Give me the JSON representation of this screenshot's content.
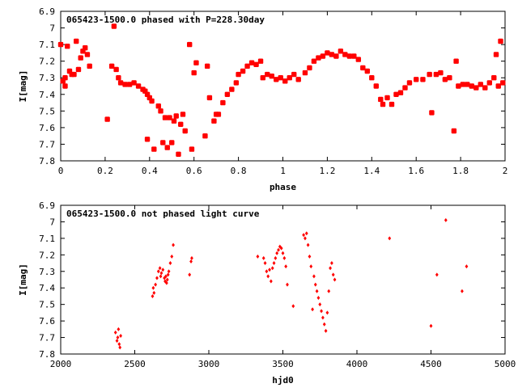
{
  "chart_data": [
    {
      "type": "scatter",
      "title": "065423-1500.0 phased with P=228.30day",
      "xlabel": "phase",
      "ylabel": "I[mag]",
      "xlim": [
        0,
        2
      ],
      "ylim": [
        6.9,
        7.8
      ],
      "y_inverted": true,
      "grid": false,
      "marker_color": "#ff0000",
      "xticks": [
        "0",
        "0.2",
        "0.4",
        "0.6",
        "0.8",
        "1",
        "1.2",
        "1.4",
        "1.6",
        "1.8",
        "2"
      ],
      "yticks": [
        "6.9",
        "7",
        "7.1",
        "7.2",
        "7.3",
        "7.4",
        "7.5",
        "7.6",
        "7.7",
        "7.8"
      ],
      "points": [
        [
          0.0,
          7.1
        ],
        [
          0.01,
          7.32
        ],
        [
          0.02,
          7.3
        ],
        [
          0.02,
          7.35
        ],
        [
          0.03,
          7.11
        ],
        [
          0.04,
          7.26
        ],
        [
          0.05,
          7.28
        ],
        [
          0.06,
          7.28
        ],
        [
          0.07,
          7.08
        ],
        [
          0.08,
          7.25
        ],
        [
          0.09,
          7.18
        ],
        [
          0.1,
          7.14
        ],
        [
          0.11,
          7.12
        ],
        [
          0.12,
          7.16
        ],
        [
          0.13,
          7.23
        ],
        [
          0.21,
          7.55
        ],
        [
          0.23,
          7.23
        ],
        [
          0.24,
          6.99
        ],
        [
          0.25,
          7.25
        ],
        [
          0.26,
          7.3
        ],
        [
          0.27,
          7.33
        ],
        [
          0.29,
          7.34
        ],
        [
          0.31,
          7.34
        ],
        [
          0.33,
          7.33
        ],
        [
          0.35,
          7.35
        ],
        [
          0.37,
          7.37
        ],
        [
          0.38,
          7.38
        ],
        [
          0.39,
          7.4
        ],
        [
          0.4,
          7.42
        ],
        [
          0.41,
          7.44
        ],
        [
          0.39,
          7.67
        ],
        [
          0.42,
          7.73
        ],
        [
          0.44,
          7.47
        ],
        [
          0.45,
          7.5
        ],
        [
          0.46,
          7.69
        ],
        [
          0.47,
          7.54
        ],
        [
          0.48,
          7.72
        ],
        [
          0.49,
          7.54
        ],
        [
          0.5,
          7.69
        ],
        [
          0.51,
          7.56
        ],
        [
          0.52,
          7.53
        ],
        [
          0.53,
          7.76
        ],
        [
          0.54,
          7.58
        ],
        [
          0.55,
          7.52
        ],
        [
          0.56,
          7.62
        ],
        [
          0.58,
          7.1
        ],
        [
          0.59,
          7.73
        ],
        [
          0.6,
          7.27
        ],
        [
          0.61,
          7.21
        ],
        [
          0.65,
          7.65
        ],
        [
          0.66,
          7.23
        ],
        [
          0.67,
          7.42
        ],
        [
          0.69,
          7.56
        ],
        [
          0.7,
          7.52
        ],
        [
          0.71,
          7.52
        ],
        [
          0.73,
          7.45
        ],
        [
          0.75,
          7.4
        ],
        [
          0.77,
          7.37
        ],
        [
          0.79,
          7.33
        ],
        [
          0.8,
          7.28
        ],
        [
          0.82,
          7.26
        ],
        [
          0.84,
          7.23
        ],
        [
          0.86,
          7.21
        ],
        [
          0.88,
          7.22
        ],
        [
          0.9,
          7.2
        ],
        [
          0.91,
          7.3
        ],
        [
          0.93,
          7.28
        ],
        [
          0.95,
          7.29
        ],
        [
          0.97,
          7.31
        ],
        [
          0.99,
          7.3
        ],
        [
          1.01,
          7.32
        ],
        [
          1.03,
          7.3
        ],
        [
          1.05,
          7.28
        ],
        [
          1.07,
          7.31
        ],
        [
          1.1,
          7.27
        ],
        [
          1.12,
          7.24
        ],
        [
          1.14,
          7.2
        ],
        [
          1.16,
          7.18
        ],
        [
          1.18,
          7.17
        ],
        [
          1.2,
          7.15
        ],
        [
          1.22,
          7.16
        ],
        [
          1.24,
          7.17
        ],
        [
          1.26,
          7.14
        ],
        [
          1.28,
          7.16
        ],
        [
          1.3,
          7.17
        ],
        [
          1.32,
          7.17
        ],
        [
          1.34,
          7.19
        ],
        [
          1.36,
          7.24
        ],
        [
          1.38,
          7.26
        ],
        [
          1.4,
          7.3
        ],
        [
          1.42,
          7.35
        ],
        [
          1.44,
          7.43
        ],
        [
          1.45,
          7.46
        ],
        [
          1.47,
          7.42
        ],
        [
          1.49,
          7.46
        ],
        [
          1.51,
          7.4
        ],
        [
          1.53,
          7.39
        ],
        [
          1.55,
          7.36
        ],
        [
          1.57,
          7.33
        ],
        [
          1.6,
          7.31
        ],
        [
          1.63,
          7.31
        ],
        [
          1.66,
          7.28
        ],
        [
          1.67,
          7.51
        ],
        [
          1.69,
          7.28
        ],
        [
          1.71,
          7.27
        ],
        [
          1.73,
          7.31
        ],
        [
          1.75,
          7.3
        ],
        [
          1.77,
          7.62
        ],
        [
          1.78,
          7.2
        ],
        [
          1.79,
          7.35
        ],
        [
          1.81,
          7.34
        ],
        [
          1.83,
          7.34
        ],
        [
          1.85,
          7.35
        ],
        [
          1.87,
          7.36
        ],
        [
          1.89,
          7.34
        ],
        [
          1.91,
          7.36
        ],
        [
          1.93,
          7.33
        ],
        [
          1.95,
          7.3
        ],
        [
          1.96,
          7.16
        ],
        [
          1.97,
          7.35
        ],
        [
          1.98,
          7.08
        ],
        [
          1.99,
          7.33
        ]
      ]
    },
    {
      "type": "scatter",
      "title": "065423-1500.0 not phased light curve",
      "xlabel": "hjd0",
      "ylabel": "I[mag]",
      "xlim": [
        2000,
        5000
      ],
      "ylim": [
        6.9,
        7.8
      ],
      "y_inverted": true,
      "grid": false,
      "marker_color": "#ff0000",
      "xticks": [
        "2000",
        "2500",
        "3000",
        "3500",
        "4000",
        "4500",
        "5000"
      ],
      "yticks": [
        "6.9",
        "7",
        "7.1",
        "7.2",
        "7.3",
        "7.4",
        "7.5",
        "7.6",
        "7.7",
        "7.8"
      ],
      "points": [
        [
          2370,
          7.67
        ],
        [
          2380,
          7.72
        ],
        [
          2385,
          7.7
        ],
        [
          2390,
          7.65
        ],
        [
          2395,
          7.74
        ],
        [
          2400,
          7.76
        ],
        [
          2405,
          7.69
        ],
        [
          2620,
          7.45
        ],
        [
          2625,
          7.4
        ],
        [
          2630,
          7.43
        ],
        [
          2640,
          7.38
        ],
        [
          2650,
          7.34
        ],
        [
          2660,
          7.3
        ],
        [
          2670,
          7.28
        ],
        [
          2675,
          7.33
        ],
        [
          2680,
          7.31
        ],
        [
          2690,
          7.29
        ],
        [
          2700,
          7.34
        ],
        [
          2705,
          7.36
        ],
        [
          2710,
          7.33
        ],
        [
          2715,
          7.37
        ],
        [
          2720,
          7.35
        ],
        [
          2725,
          7.32
        ],
        [
          2730,
          7.3
        ],
        [
          2740,
          7.25
        ],
        [
          2750,
          7.21
        ],
        [
          2760,
          7.14
        ],
        [
          2870,
          7.32
        ],
        [
          2880,
          7.24
        ],
        [
          2885,
          7.22
        ],
        [
          3330,
          7.21
        ],
        [
          3370,
          7.22
        ],
        [
          3380,
          7.25
        ],
        [
          3390,
          7.3
        ],
        [
          3400,
          7.33
        ],
        [
          3410,
          7.29
        ],
        [
          3420,
          7.36
        ],
        [
          3430,
          7.28
        ],
        [
          3440,
          7.25
        ],
        [
          3450,
          7.22
        ],
        [
          3460,
          7.19
        ],
        [
          3470,
          7.17
        ],
        [
          3480,
          7.15
        ],
        [
          3490,
          7.16
        ],
        [
          3500,
          7.19
        ],
        [
          3510,
          7.22
        ],
        [
          3520,
          7.27
        ],
        [
          3530,
          7.38
        ],
        [
          3570,
          7.51
        ],
        [
          3640,
          7.08
        ],
        [
          3650,
          7.1
        ],
        [
          3660,
          7.07
        ],
        [
          3670,
          7.14
        ],
        [
          3680,
          7.21
        ],
        [
          3690,
          7.27
        ],
        [
          3700,
          7.53
        ],
        [
          3710,
          7.33
        ],
        [
          3720,
          7.38
        ],
        [
          3730,
          7.42
        ],
        [
          3740,
          7.46
        ],
        [
          3750,
          7.5
        ],
        [
          3760,
          7.54
        ],
        [
          3770,
          7.58
        ],
        [
          3780,
          7.62
        ],
        [
          3790,
          7.66
        ],
        [
          3800,
          7.55
        ],
        [
          3810,
          7.42
        ],
        [
          3820,
          7.28
        ],
        [
          3830,
          7.25
        ],
        [
          3840,
          7.32
        ],
        [
          3850,
          7.35
        ],
        [
          4220,
          7.1
        ],
        [
          4500,
          7.63
        ],
        [
          4540,
          7.32
        ],
        [
          4600,
          6.99
        ],
        [
          4710,
          7.42
        ],
        [
          4740,
          7.27
        ]
      ]
    }
  ]
}
